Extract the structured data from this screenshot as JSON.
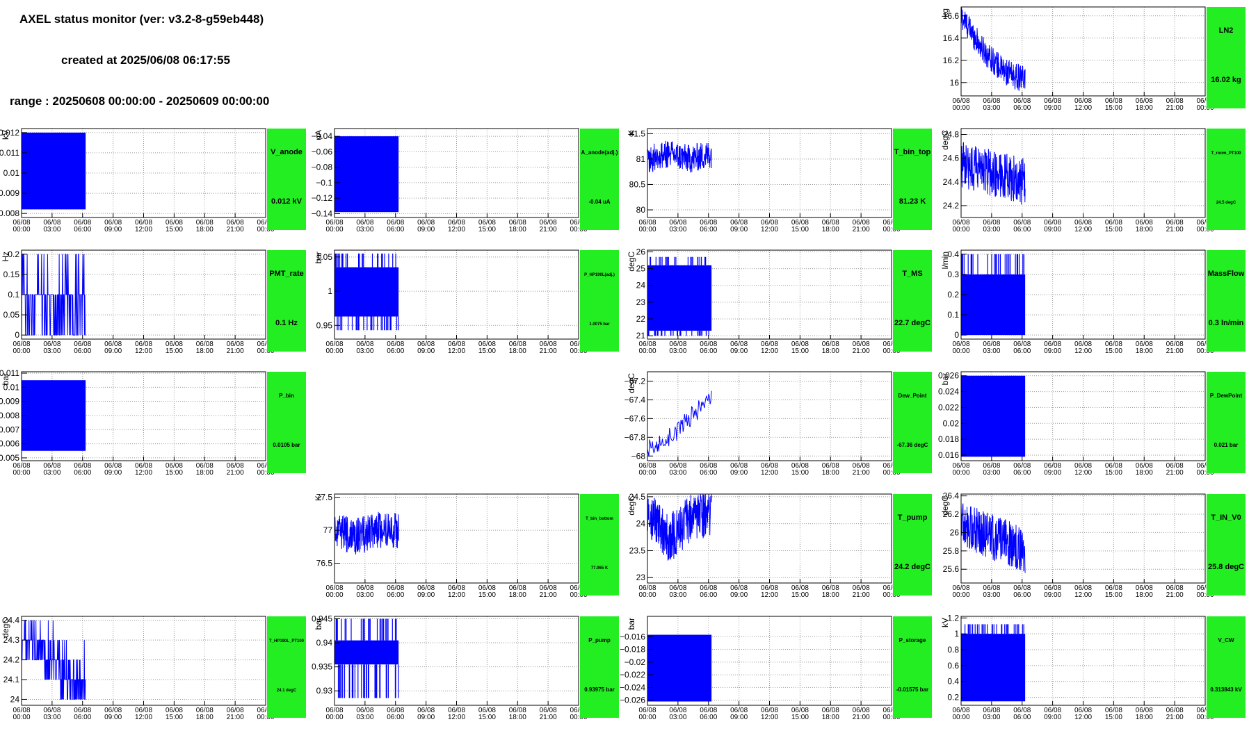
{
  "header": {
    "title": "AXEL status monitor (ver: v3.2-8-g59eb448)",
    "created": "created at 2025/06/08 06:17:55",
    "range": "range : 20250608 00:00:00 - 20250609 00:00:00"
  },
  "time_axis": {
    "dates": [
      "06/08",
      "06/08",
      "06/08",
      "06/08",
      "06/08",
      "06/08",
      "06/08",
      "06/08",
      "06/09"
    ],
    "times": [
      "00:00",
      "03:00",
      "06:00",
      "09:00",
      "12:00",
      "15:00",
      "18:00",
      "21:00",
      "00:00"
    ],
    "data_end_hour": 6.3
  },
  "colors": {
    "series": "#0000ff",
    "status_ok": "#22ee22",
    "grid": "#999999"
  },
  "chart_data": [
    {
      "type": "line",
      "row": 0,
      "col": 3,
      "name": "LN2",
      "unit": "kg",
      "value": "16.02 kg",
      "ylim": [
        15.88,
        16.68
      ],
      "yticks": [
        "16",
        "16.2",
        "16.4",
        "16.6"
      ],
      "ytick_values": [
        16,
        16.2,
        16.4,
        16.6
      ],
      "trend": [
        16.6,
        16.3,
        16.1,
        16.02
      ],
      "noise": 0.12,
      "style": "noisy",
      "label_size": "normal"
    },
    {
      "type": "line",
      "row": 1,
      "col": 0,
      "name": "V_anode",
      "unit": "kV",
      "value": "0.012 kV",
      "ylim": [
        0.0078,
        0.0122
      ],
      "yticks": [
        "0.008",
        "0.009",
        "0.01",
        "0.011",
        "0.012"
      ],
      "ytick_values": [
        0.008,
        0.009,
        0.01,
        0.011,
        0.012
      ],
      "band": [
        0.0082,
        0.012
      ],
      "style": "band",
      "label_size": "normal"
    },
    {
      "type": "line",
      "row": 1,
      "col": 1,
      "name": "A_anode(adj.)",
      "unit": "uA",
      "value": "-0.04 uA",
      "ylim": [
        -0.145,
        -0.03
      ],
      "yticks": [
        "−0.14",
        "−0.12",
        "−0.1",
        "−0.08",
        "−0.06",
        "−0.04"
      ],
      "ytick_values": [
        -0.14,
        -0.12,
        -0.1,
        -0.08,
        -0.06,
        -0.04
      ],
      "band": [
        -0.138,
        -0.04
      ],
      "style": "band",
      "label_size": "small"
    },
    {
      "type": "line",
      "row": 1,
      "col": 2,
      "name": "T_bin_top",
      "unit": "K",
      "value": "81.23 K",
      "ylim": [
        79.85,
        81.6
      ],
      "yticks": [
        "80",
        "80.5",
        "81",
        "81.5"
      ],
      "ytick_values": [
        80,
        80.5,
        81,
        81.5
      ],
      "trend": [
        81.0,
        81.1,
        81.0,
        81.1
      ],
      "noise": 0.35,
      "style": "wave",
      "label_size": "normal"
    },
    {
      "type": "line",
      "row": 1,
      "col": 3,
      "name": "T_room_PT100",
      "unit": "degC",
      "value": "24.5 degC",
      "ylim": [
        24.1,
        24.85
      ],
      "yticks": [
        "24.2",
        "24.4",
        "24.6",
        "24.8"
      ],
      "ytick_values": [
        24.2,
        24.4,
        24.6,
        24.8
      ],
      "trend": [
        24.55,
        24.5,
        24.45,
        24.4
      ],
      "noise": 0.2,
      "style": "noisy",
      "label_size": "tiny"
    },
    {
      "type": "line",
      "row": 2,
      "col": 0,
      "name": "PMT_rate",
      "unit": "Hz",
      "value": "0.1 Hz",
      "ylim": [
        -0.01,
        0.21
      ],
      "yticks": [
        "0",
        "0.05",
        "0.1",
        "0.15",
        "0.2"
      ],
      "ytick_values": [
        0,
        0.05,
        0.1,
        0.15,
        0.2
      ],
      "steps": [
        0,
        0.1,
        0.2
      ],
      "style": "spiky",
      "label_size": "normal"
    },
    {
      "type": "line",
      "row": 2,
      "col": 1,
      "name": "P_HP190L(adj.)",
      "unit": "bar",
      "value": "1.0075 bar",
      "ylim": [
        0.93,
        1.06
      ],
      "yticks": [
        "0.95",
        "1",
        "1.05"
      ],
      "ytick_values": [
        0.95,
        1.0,
        1.05
      ],
      "band": [
        0.963,
        1.035
      ],
      "spikes": [
        0.943,
        1.055
      ],
      "style": "bandspike",
      "label_size": "tiny"
    },
    {
      "type": "line",
      "row": 2,
      "col": 2,
      "name": "T_MS",
      "unit": "degC",
      "value": "22.7 degC",
      "ylim": [
        20.8,
        26.1
      ],
      "yticks": [
        "21",
        "22",
        "23",
        "24",
        "25",
        "26"
      ],
      "ytick_values": [
        21,
        22,
        23,
        24,
        25,
        26
      ],
      "band": [
        21.3,
        25.2
      ],
      "spikes": [
        21.0,
        25.7
      ],
      "style": "bandspike",
      "label_size": "normal"
    },
    {
      "type": "line",
      "row": 2,
      "col": 3,
      "name": "MassFlow",
      "unit": "l/min",
      "value": "0.3 ln/min",
      "ylim": [
        -0.02,
        0.42
      ],
      "yticks": [
        "0",
        "0.1",
        "0.2",
        "0.3",
        "0.4"
      ],
      "ytick_values": [
        0,
        0.1,
        0.2,
        0.3,
        0.4
      ],
      "band": [
        0,
        0.3
      ],
      "spikes": [
        0,
        0.4
      ],
      "style": "bandspike",
      "label_size": "normal"
    },
    {
      "type": "line",
      "row": 3,
      "col": 0,
      "name": "P_bin",
      "unit": "bar",
      "value": "0.0105 bar",
      "ylim": [
        0.0048,
        0.0111
      ],
      "yticks": [
        "0.005",
        "0.006",
        "0.007",
        "0.008",
        "0.009",
        "0.01",
        "0.011"
      ],
      "ytick_values": [
        0.005,
        0.006,
        0.007,
        0.008,
        0.009,
        0.01,
        0.011
      ],
      "band": [
        0.0055,
        0.0105
      ],
      "style": "band",
      "label_size": "small"
    },
    {
      "type": "line",
      "row": 3,
      "col": 2,
      "name": "Dew_Point",
      "unit": "degC",
      "value": "-67.36 degC",
      "ylim": [
        -68.05,
        -67.1
      ],
      "yticks": [
        "−68",
        "−67.8",
        "−67.6",
        "−67.4",
        "−67.2"
      ],
      "ytick_values": [
        -68,
        -67.8,
        -67.6,
        -67.4,
        -67.2
      ],
      "trend": [
        -67.95,
        -67.8,
        -67.6,
        -67.36
      ],
      "noise": 0.08,
      "style": "stair",
      "label_size": "small"
    },
    {
      "type": "line",
      "row": 3,
      "col": 3,
      "name": "P_DewPoint",
      "unit": "bar",
      "value": "0.021 bar",
      "ylim": [
        0.0153,
        0.0265
      ],
      "yticks": [
        "0.016",
        "0.018",
        "0.02",
        "0.022",
        "0.024",
        "0.026"
      ],
      "ytick_values": [
        0.016,
        0.018,
        0.02,
        0.022,
        0.024,
        0.026
      ],
      "band": [
        0.0158,
        0.026
      ],
      "style": "band",
      "label_size": "small"
    },
    {
      "type": "line",
      "row": 4,
      "col": 1,
      "name": "T_bin_bottom",
      "unit": "K",
      "value": "77.065 K",
      "ylim": [
        76.2,
        77.55
      ],
      "yticks": [
        "76.5",
        "77",
        "77.5"
      ],
      "ytick_values": [
        76.5,
        77,
        77.5
      ],
      "trend": [
        77.0,
        76.9,
        77.0,
        77.0
      ],
      "noise": 0.35,
      "style": "wave",
      "label_size": "tiny"
    },
    {
      "type": "line",
      "row": 4,
      "col": 2,
      "name": "T_pump",
      "unit": "degC",
      "value": "24.2 degC",
      "ylim": [
        22.9,
        24.55
      ],
      "yticks": [
        "23",
        "23.5",
        "24",
        "24.5"
      ],
      "ytick_values": [
        23,
        23.5,
        24,
        24.5
      ],
      "trend": [
        24.2,
        23.7,
        24.1,
        24.2
      ],
      "noise": 0.45,
      "style": "noisy",
      "label_size": "normal"
    },
    {
      "type": "line",
      "row": 4,
      "col": 3,
      "name": "T_IN_V0",
      "unit": "degC",
      "value": "25.8 degC",
      "ylim": [
        25.45,
        26.42
      ],
      "yticks": [
        "25.6",
        "25.8",
        "26",
        "26.2",
        "26.4"
      ],
      "ytick_values": [
        25.6,
        25.8,
        26,
        26.2,
        26.4
      ],
      "trend": [
        26.1,
        26.0,
        25.9,
        25.8
      ],
      "noise": 0.25,
      "style": "noisy",
      "label_size": "normal"
    },
    {
      "type": "line",
      "row": 5,
      "col": 0,
      "name": "T_HP190L_PT100",
      "unit": "degC",
      "value": "24.1 degC",
      "ylim": [
        23.97,
        24.42
      ],
      "yticks": [
        "24",
        "24.1",
        "24.2",
        "24.3",
        "24.4"
      ],
      "ytick_values": [
        24,
        24.1,
        24.2,
        24.3,
        24.4
      ],
      "steps": [
        24.0,
        24.1,
        24.2,
        24.3,
        24.4
      ],
      "style": "stepnoise",
      "label_size": "tiny"
    },
    {
      "type": "line",
      "row": 5,
      "col": 1,
      "name": "P_pump",
      "unit": "bar",
      "value": "0.93975 bar",
      "ylim": [
        0.927,
        0.9455
      ],
      "yticks": [
        "0.93",
        "0.935",
        "0.94",
        "0.945"
      ],
      "ytick_values": [
        0.93,
        0.935,
        0.94,
        0.945
      ],
      "band": [
        0.9355,
        0.9405
      ],
      "spikes": [
        0.9285,
        0.945
      ],
      "style": "bandspike",
      "label_size": "small"
    },
    {
      "type": "line",
      "row": 5,
      "col": 2,
      "name": "P_storage",
      "unit": "bar",
      "value": "-0.01575 bar",
      "ylim": [
        -0.0268,
        -0.0128
      ],
      "yticks": [
        "−0.026",
        "−0.024",
        "−0.022",
        "−0.02",
        "−0.018",
        "−0.016"
      ],
      "ytick_values": [
        -0.026,
        -0.024,
        -0.022,
        -0.02,
        -0.018,
        -0.016
      ],
      "band": [
        -0.0262,
        -0.0157
      ],
      "style": "band",
      "label_size": "small"
    },
    {
      "type": "line",
      "row": 5,
      "col": 3,
      "name": "V_CW",
      "unit": "kV",
      "value": "0.313843 kV",
      "ylim": [
        0.1,
        1.22
      ],
      "yticks": [
        "0.2",
        "0.4",
        "0.6",
        "0.8",
        "1",
        "1.2"
      ],
      "ytick_values": [
        0.2,
        0.4,
        0.6,
        0.8,
        1.0,
        1.2
      ],
      "band": [
        0.15,
        1.0
      ],
      "spikes": [
        0.15,
        1.12
      ],
      "style": "bandspike",
      "label_size": "small"
    }
  ]
}
